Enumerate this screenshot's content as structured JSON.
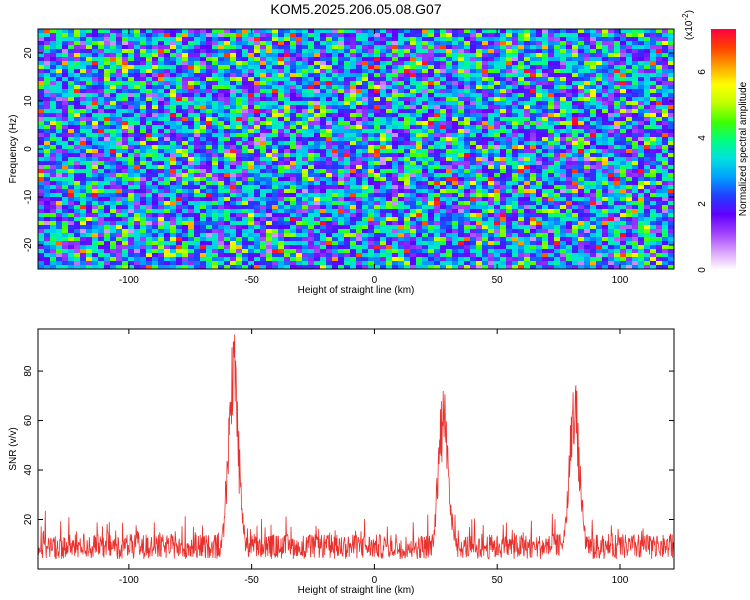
{
  "title": "KOM5.2025.206.05.08.G07",
  "chart_data": [
    {
      "type": "heatmap",
      "title": "KOM5.2025.206.05.08.G07",
      "xlabel": "Height of straight line (km)",
      "ylabel": "Frequency (Hz)",
      "xlim": [
        -137,
        122
      ],
      "ylim": [
        -25,
        25
      ],
      "x_ticks": [
        -100,
        -50,
        0,
        50,
        100
      ],
      "y_ticks": [
        -20,
        -10,
        0,
        10,
        20
      ],
      "colorbar": {
        "label": "Normalized spectral amplitude",
        "exponent_label": "(x10",
        "exponent_power": "-2",
        "exponent_close": ")",
        "range": [
          0,
          7.3
        ],
        "ticks": [
          0,
          2,
          4,
          6
        ],
        "colors": [
          "#ffffff",
          "#d8a0ff",
          "#a040ff",
          "#6000ff",
          "#2040ff",
          "#00a0ff",
          "#00e0e0",
          "#00ff80",
          "#40ff00",
          "#c0ff00",
          "#ffff00",
          "#ffa000",
          "#ff4000",
          "#ff0040"
        ]
      }
    },
    {
      "type": "line",
      "xlabel": "Height of straight line (km)",
      "ylabel": "SNR (v/v)",
      "xlim": [
        -137,
        122
      ],
      "ylim": [
        0,
        97
      ],
      "x_ticks": [
        -100,
        -50,
        0,
        50,
        100
      ],
      "y_ticks": [
        20,
        40,
        60,
        80
      ],
      "series_color": "#e8302c",
      "peaks": [
        {
          "x": -57.5,
          "y": 96
        },
        {
          "x": 28,
          "y": 75
        },
        {
          "x": 81.5,
          "y": 74
        }
      ]
    }
  ]
}
